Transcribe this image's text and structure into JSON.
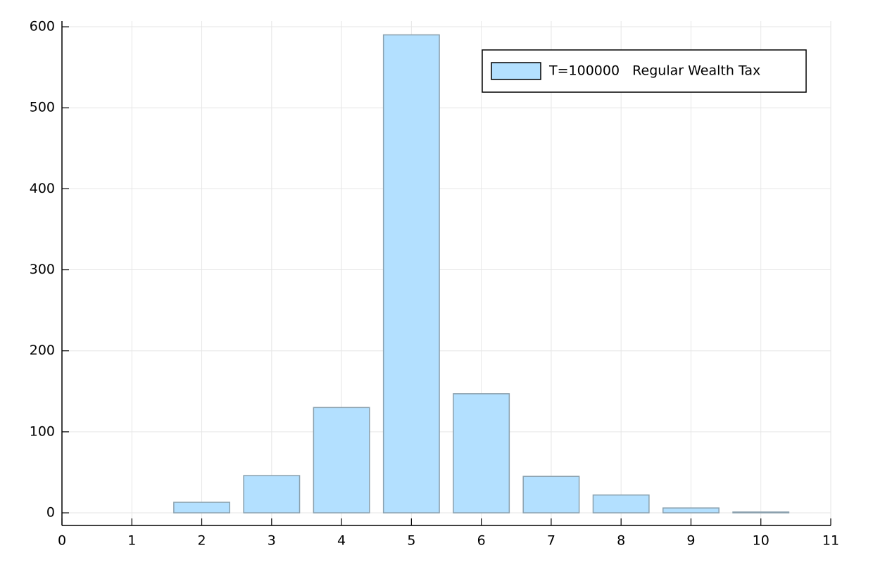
{
  "chart_data": {
    "type": "bar",
    "x": [
      1,
      2,
      3,
      4,
      5,
      6,
      7,
      8,
      9,
      10
    ],
    "series": [
      {
        "name": "T=100000   Regular Wealth Tax",
        "color": "#b3e0ff",
        "values": [
          0,
          13,
          46,
          130,
          590,
          147,
          45,
          22,
          6,
          1
        ]
      }
    ],
    "xlim": [
      0,
      11
    ],
    "xticks": [
      0,
      1,
      2,
      3,
      4,
      5,
      6,
      7,
      8,
      9,
      10,
      11
    ],
    "ylim": [
      -15.6,
      607
    ],
    "yticks": [
      0,
      100,
      200,
      300,
      400,
      500,
      600
    ],
    "grid": true,
    "legend": "top right"
  }
}
